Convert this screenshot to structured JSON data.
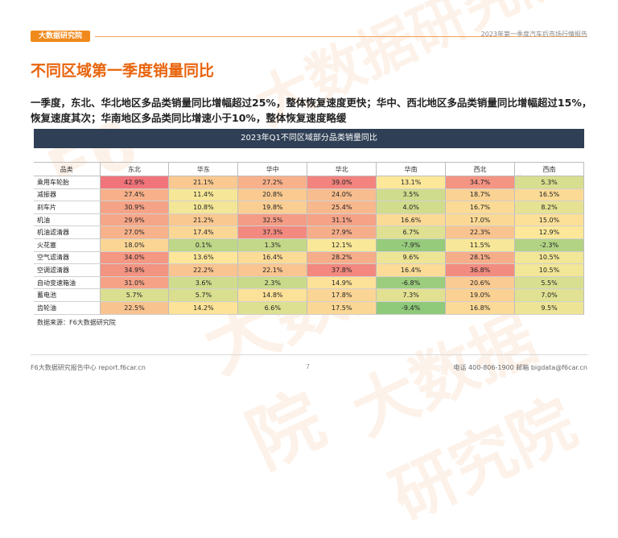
{
  "header": {
    "logo_text": "大数据研究院",
    "report_title": "2023年第一季度汽车后市场行情报告"
  },
  "page_title": "不同区域第一季度销量同比",
  "summary": "一季度，东北、华北地区多品类销量同比增幅超过25%，整体恢复速度更快；华中、西北地区多品类销量同比增幅超过15%，恢复速度其次；华南地区多品类同比增速小于10%，整体恢复速度略缓",
  "table": {
    "title": "2023年Q1不同区域部分品类销量同比",
    "columns": [
      "品类",
      "东北",
      "华东",
      "华中",
      "华北",
      "华南",
      "西北",
      "西南"
    ],
    "rows": [
      {
        "category": "乘用车轮胎",
        "values": [
          "42.9%",
          "21.1%",
          "27.2%",
          "39.0%",
          "13.1%",
          "34.7%",
          "5.3%"
        ]
      },
      {
        "category": "减振器",
        "values": [
          "27.4%",
          "11.4%",
          "20.8%",
          "24.0%",
          "3.5%",
          "18.7%",
          "16.5%"
        ]
      },
      {
        "category": "刹车片",
        "values": [
          "30.9%",
          "10.8%",
          "19.8%",
          "25.4%",
          "4.0%",
          "16.7%",
          "8.2%"
        ]
      },
      {
        "category": "机油",
        "values": [
          "29.9%",
          "21.2%",
          "32.5%",
          "31.1%",
          "16.6%",
          "17.0%",
          "15.0%"
        ]
      },
      {
        "category": "机油滤清器",
        "values": [
          "27.0%",
          "17.4%",
          "37.3%",
          "27.9%",
          "6.7%",
          "22.3%",
          "12.9%"
        ]
      },
      {
        "category": "火花塞",
        "values": [
          "18.0%",
          "0.1%",
          "1.3%",
          "12.1%",
          "-7.9%",
          "11.5%",
          "-2.3%"
        ]
      },
      {
        "category": "空气滤清器",
        "values": [
          "34.0%",
          "13.6%",
          "16.4%",
          "28.2%",
          "9.6%",
          "28.1%",
          "10.5%"
        ]
      },
      {
        "category": "空调滤清器",
        "values": [
          "34.9%",
          "22.2%",
          "22.1%",
          "37.8%",
          "16.4%",
          "36.8%",
          "10.5%"
        ]
      },
      {
        "category": "自动变速箱油",
        "values": [
          "31.0%",
          "3.6%",
          "2.3%",
          "14.9%",
          "-6.8%",
          "20.6%",
          "5.5%"
        ]
      },
      {
        "category": "蓄电池",
        "values": [
          "5.7%",
          "5.7%",
          "14.8%",
          "17.8%",
          "7.3%",
          "19.0%",
          "7.0%"
        ]
      },
      {
        "category": "齿轮油",
        "values": [
          "22.5%",
          "14.2%",
          "6.6%",
          "17.5%",
          "-9.4%",
          "16.8%",
          "9.5%"
        ]
      }
    ],
    "source": "数据来源：F6大数据研究院"
  },
  "colors": {
    "accent": "#e8640c",
    "table_header": "#2f3f55",
    "heat_high": "#f0747a",
    "heat_mid": "#fde99a",
    "heat_low": "#8fc97a"
  },
  "footer": {
    "left": "F6大数据研究报告中心 report.f6car.cn",
    "page": "7",
    "right": "电话 400-806-1900  邮箱 bigdata@f6car.cn"
  }
}
